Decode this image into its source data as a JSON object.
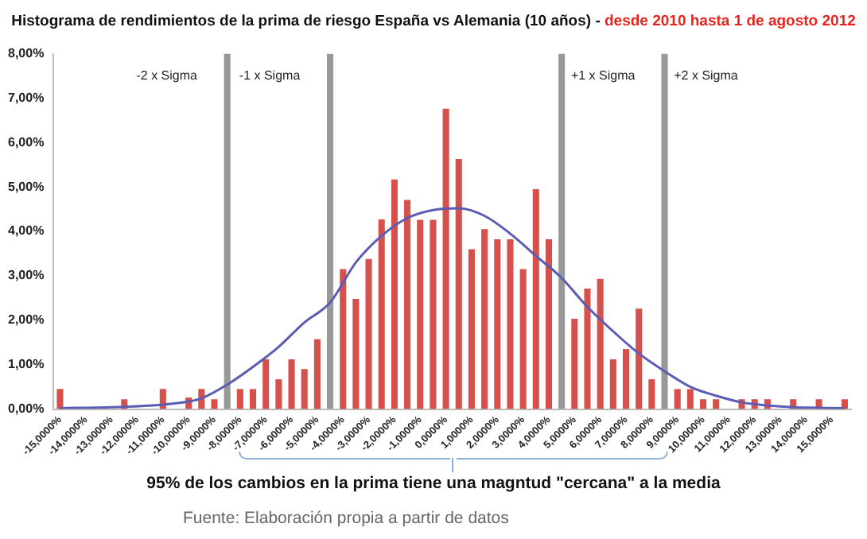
{
  "chart_data": {
    "type": "bar",
    "title": "Histograma de rendimientos de la prima de riesgo España vs Alemania (10 años) -",
    "subtitle": "desde 2010 hasta 1 de agosto 2012",
    "categories": [
      "-15,0000%",
      null,
      "-14,0000%",
      null,
      "-13,0000%",
      null,
      "-12,0000%",
      null,
      "-11,0000%",
      null,
      "-10,0000%",
      null,
      "-9,0000%",
      null,
      "-8,0000%",
      null,
      "-7,0000%",
      null,
      "-6,0000%",
      null,
      "-5,0000%",
      null,
      "-4,0000%",
      null,
      "-3,0000%",
      null,
      "-2,0000%",
      null,
      "-1,0000%",
      null,
      "0,0000%",
      null,
      "1,0000%",
      null,
      "2,0000%",
      null,
      "3,0000%",
      null,
      "4,0000%",
      null,
      "5,0000%",
      null,
      "6,0000%",
      null,
      "7,0000%",
      null,
      "8,0000%",
      null,
      "9,0000%",
      null,
      "10,0000%",
      null,
      "11,0000%",
      null,
      "12,0000%",
      null,
      "13,0000%",
      null,
      "14,0000%",
      null,
      "15,0000%",
      null
    ],
    "series": [
      {
        "type": "bar",
        "color": "#d6504c",
        "values": [
          0.45,
          0,
          0,
          0,
          0,
          0.22,
          0,
          0,
          0.45,
          0,
          0.26,
          0.45,
          0.22,
          null,
          0.45,
          0.45,
          1.12,
          0.67,
          1.12,
          0.9,
          1.57,
          null,
          3.15,
          2.48,
          3.38,
          4.27,
          5.17,
          4.71,
          4.26,
          4.26,
          6.76,
          5.63,
          3.6,
          4.05,
          3.82,
          3.82,
          3.15,
          4.95,
          3.82,
          null,
          2.03,
          2.71,
          2.93,
          1.12,
          1.35,
          2.26,
          0.67,
          null,
          0.45,
          0.45,
          0.22,
          0.22,
          0,
          0.22,
          0.22,
          0.22,
          0,
          0.22,
          0,
          0.22,
          0,
          0.22
        ]
      },
      {
        "type": "bar",
        "color": "#999999",
        "values": [
          null,
          null,
          null,
          null,
          null,
          null,
          null,
          null,
          null,
          null,
          null,
          null,
          null,
          8,
          null,
          null,
          null,
          null,
          null,
          null,
          null,
          8,
          null,
          null,
          null,
          null,
          null,
          null,
          null,
          null,
          null,
          null,
          null,
          null,
          null,
          null,
          null,
          null,
          null,
          8,
          null,
          null,
          null,
          null,
          null,
          null,
          null,
          8,
          null,
          null,
          null,
          null,
          null,
          null,
          null,
          null,
          null,
          null,
          null,
          null,
          null,
          null
        ]
      },
      {
        "type": "line",
        "color": "#5a5db3",
        "marker": "none",
        "values": [
          0.02,
          null,
          null,
          null,
          0.04,
          null,
          null,
          null,
          0.1,
          null,
          0.17,
          0.24,
          null,
          0.55,
          null,
          0.95,
          null,
          1.4,
          null,
          1.95,
          null,
          2.4,
          null,
          3.3,
          null,
          3.9,
          null,
          4.3,
          null,
          4.48,
          null,
          4.52,
          null,
          4.35,
          null,
          3.95,
          null,
          3.45,
          null,
          2.95,
          null,
          2.3,
          null,
          1.75,
          null,
          1.25,
          null,
          0.85,
          null,
          0.5,
          null,
          0.3,
          null,
          0.15,
          null,
          0.08,
          null,
          0.04,
          null,
          null,
          null,
          0.02
        ]
      }
    ],
    "ylim": [
      0,
      8
    ],
    "yticks": [
      {
        "value": 0,
        "label": "0,00%"
      },
      {
        "value": 1,
        "label": "1,00%"
      },
      {
        "value": 2,
        "label": "2,00%"
      },
      {
        "value": 3,
        "label": "3,00%"
      },
      {
        "value": 4,
        "label": "4,00%"
      },
      {
        "value": 5,
        "label": "5,00%"
      },
      {
        "value": 6,
        "label": "6,00%"
      },
      {
        "value": 7,
        "label": "7,00%"
      },
      {
        "value": 8,
        "label": "8,00%"
      }
    ],
    "annotations": [
      "-2 x Sigma",
      "-1 x Sigma",
      "+1 x Sigma",
      "+2 x Sigma",
      "95% de los cambios en la prima tiene una magntud \"cercana\" a la media",
      "Fuente: Elaboración propia a partir de datos"
    ]
  }
}
